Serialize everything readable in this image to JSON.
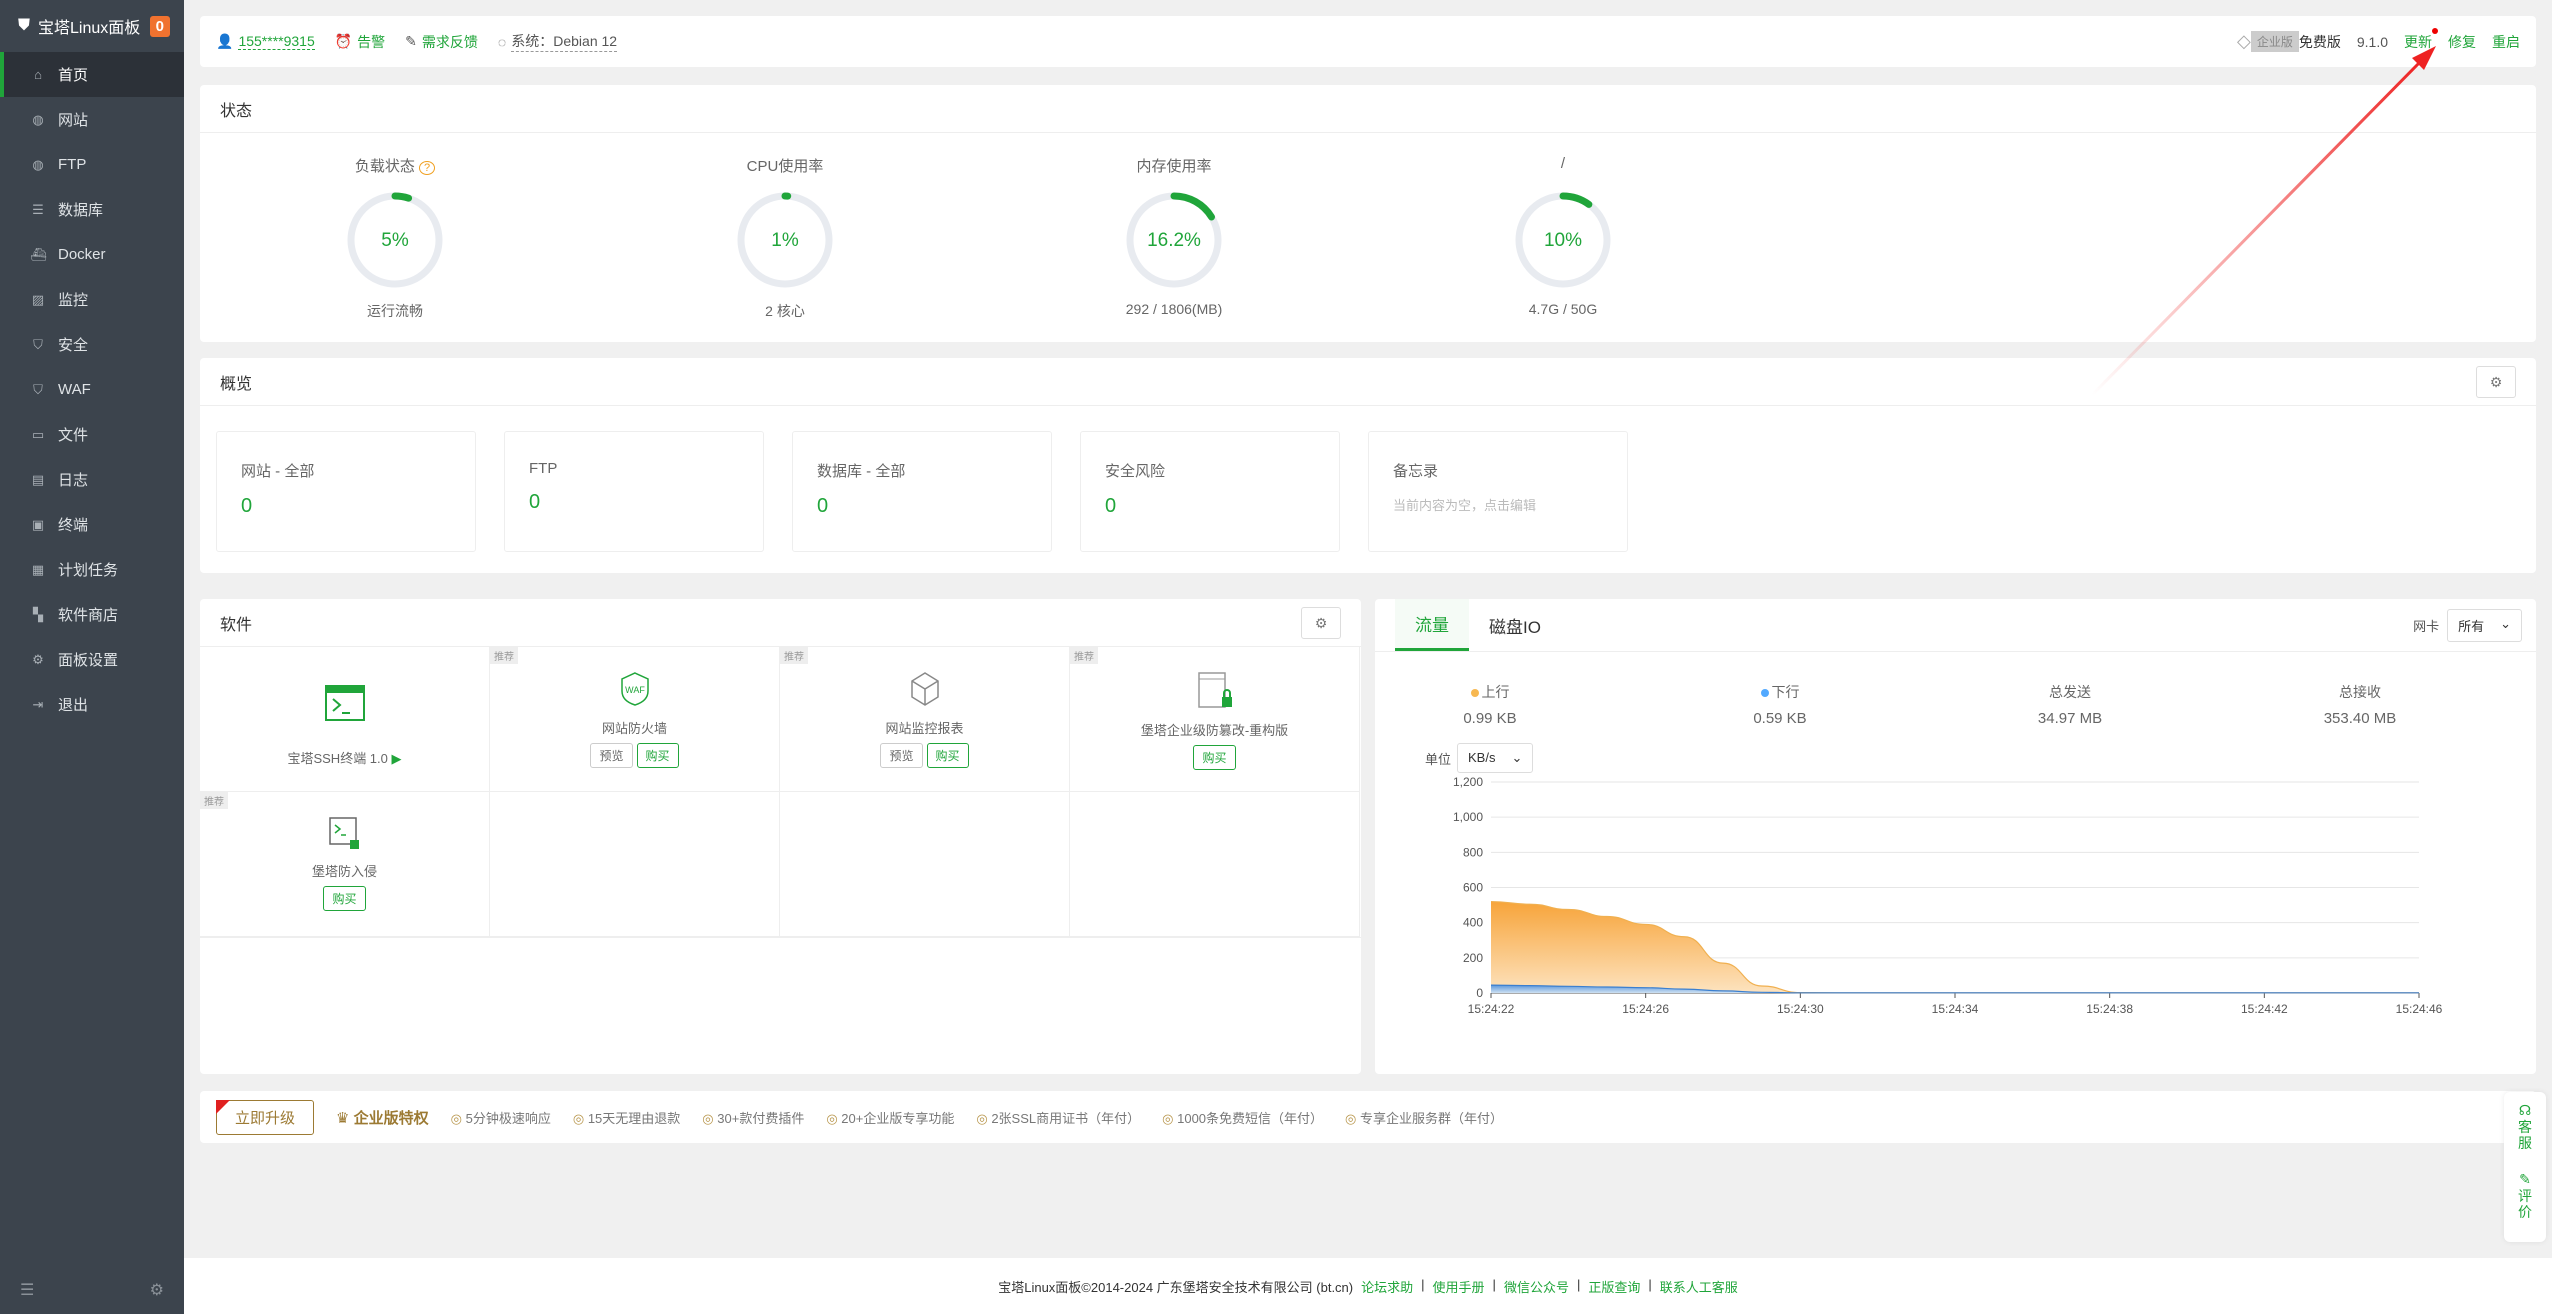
{
  "sidebar": {
    "brand": "宝塔Linux面板",
    "badge": "0",
    "items": [
      {
        "label": "首页",
        "icon": "home-icon"
      },
      {
        "label": "网站",
        "icon": "globe-icon"
      },
      {
        "label": "FTP",
        "icon": "ftp-icon"
      },
      {
        "label": "数据库",
        "icon": "database-icon"
      },
      {
        "label": "Docker",
        "icon": "docker-icon"
      },
      {
        "label": "监控",
        "icon": "monitor-icon"
      },
      {
        "label": "安全",
        "icon": "shield-icon"
      },
      {
        "label": "WAF",
        "icon": "waf-icon"
      },
      {
        "label": "文件",
        "icon": "folder-icon"
      },
      {
        "label": "日志",
        "icon": "log-icon"
      },
      {
        "label": "终端",
        "icon": "terminal-icon"
      },
      {
        "label": "计划任务",
        "icon": "calendar-icon"
      },
      {
        "label": "软件商店",
        "icon": "apps-icon"
      },
      {
        "label": "面板设置",
        "icon": "gear-icon"
      },
      {
        "label": "退出",
        "icon": "logout-icon"
      }
    ]
  },
  "topbar": {
    "user": "155****9315",
    "alarm": "告警",
    "feedback": "需求反馈",
    "system": "系统：Debian 12",
    "enterprise": "企业版",
    "free": "免费版",
    "version": "9.1.0",
    "update": "更新",
    "repair": "修复",
    "restart": "重启"
  },
  "status": {
    "title": "状态",
    "gauges": [
      {
        "title": "负载状态",
        "value": "5%",
        "percent": 5,
        "sub": "运行流畅"
      },
      {
        "title": "CPU使用率",
        "value": "1%",
        "percent": 1,
        "sub": "2 核心"
      },
      {
        "title": "内存使用率",
        "value": "16.2%",
        "percent": 16.2,
        "sub": "292 / 1806(MB)"
      },
      {
        "title": "/",
        "value": "10%",
        "percent": 10,
        "sub": "4.7G / 50G"
      }
    ]
  },
  "overview": {
    "title": "概览",
    "items": [
      {
        "label": "网站 - 全部",
        "value": "0"
      },
      {
        "label": "FTP",
        "value": "0"
      },
      {
        "label": "数据库 - 全部",
        "value": "0"
      },
      {
        "label": "安全风险",
        "value": "0"
      },
      {
        "label": "备忘录",
        "value": "当前内容为空，点击编辑"
      }
    ]
  },
  "software": {
    "title": "软件",
    "tag": "推荐",
    "preview": "预览",
    "buy": "购买",
    "items": [
      {
        "name": "宝塔SSH终端 1.0",
        "recommended": false,
        "preview": false,
        "buy": false
      },
      {
        "name": "网站防火墙",
        "recommended": true,
        "preview": true,
        "buy": true
      },
      {
        "name": "网站监控报表",
        "recommended": true,
        "preview": true,
        "buy": true
      },
      {
        "name": "堡塔企业级防篡改-重构版",
        "recommended": true,
        "preview": false,
        "buy": true
      },
      {
        "name": "堡塔防入侵",
        "recommended": true,
        "preview": false,
        "buy": true
      }
    ]
  },
  "traffic": {
    "tabs": [
      "流量",
      "磁盘IO"
    ],
    "nic_label": "网卡",
    "nic_value": "所有",
    "unit_label": "单位",
    "unit_value": "KB/s",
    "stats": [
      {
        "label": "上行",
        "value": "0.99 KB"
      },
      {
        "label": "下行",
        "value": "0.59 KB"
      },
      {
        "label": "总发送",
        "value": "34.97 MB"
      },
      {
        "label": "总接收",
        "value": "353.40 MB"
      }
    ],
    "colors": {
      "up": "#f7b851",
      "down": "#52a9ff"
    }
  },
  "chart_data": {
    "type": "area",
    "x": [
      "15:24:22",
      "15:24:23",
      "15:24:24",
      "15:24:25",
      "15:24:26",
      "15:24:27",
      "15:24:28",
      "15:24:29",
      "15:24:30",
      "15:24:31",
      "15:24:32",
      "15:24:33",
      "15:24:34",
      "15:24:35",
      "15:24:36",
      "15:24:37",
      "15:24:38",
      "15:24:39",
      "15:24:40",
      "15:24:41",
      "15:24:42",
      "15:24:43",
      "15:24:44",
      "15:24:45",
      "15:24:46"
    ],
    "series": [
      {
        "name": "上行",
        "values": [
          520,
          505,
          475,
          435,
          390,
          320,
          170,
          40,
          2,
          1,
          1,
          1,
          1,
          1,
          1,
          1,
          1,
          1,
          1,
          1,
          1,
          1,
          1,
          1,
          1
        ]
      },
      {
        "name": "下行",
        "values": [
          45,
          42,
          38,
          34,
          30,
          22,
          12,
          4,
          1,
          1,
          1,
          1,
          1,
          1,
          1,
          1,
          1,
          1,
          1,
          1,
          1,
          1,
          1,
          1,
          1
        ]
      }
    ],
    "yticks": [
      "0",
      "200",
      "400",
      "600",
      "800",
      "1,000",
      "1,200"
    ],
    "xticks": [
      "15:24:22",
      "15:24:26",
      "15:24:30",
      "15:24:34",
      "15:24:38",
      "15:24:42",
      "15:24:46"
    ],
    "ylim": [
      0,
      1200
    ],
    "grid": true
  },
  "bottombar": {
    "upgrade": "立即升级",
    "privilege": "企业版特权",
    "items": [
      "5分钟极速响应",
      "15天无理由退款",
      "30+款付费插件",
      "20+企业版专享功能",
      "2张SSL商用证书（年付）",
      "1000条免费短信（年付）",
      "专享企业服务群（年付）"
    ]
  },
  "footer": {
    "copyright": "宝塔Linux面板©2014-2024 广东堡塔安全技术有限公司 (bt.cn)",
    "links": [
      "论坛求助",
      "使用手册",
      "微信公众号",
      "正版查询",
      "联系人工客服"
    ]
  },
  "float": {
    "service": "客服",
    "rate": "评价"
  }
}
